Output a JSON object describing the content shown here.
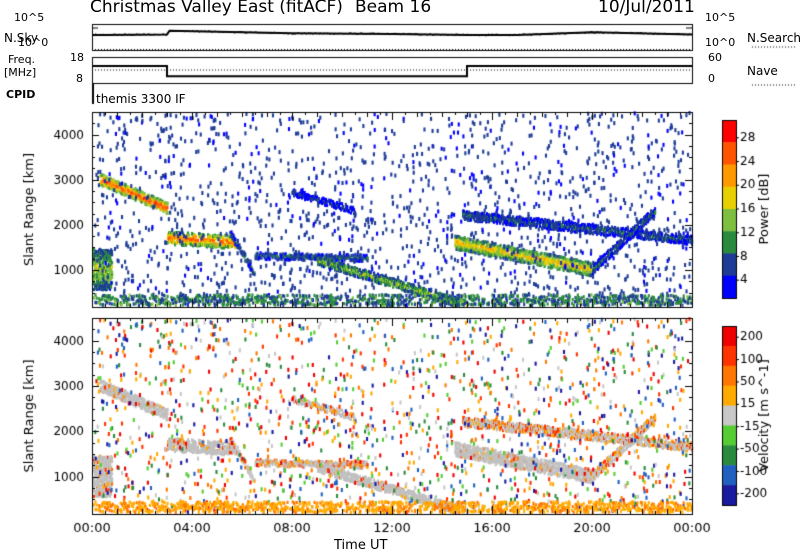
{
  "header": {
    "title": "Christmas Valley East (fitACF)",
    "beam": "Beam 16",
    "date": "10/Jul/2011"
  },
  "side_labels": {
    "nsky": "N.Sky",
    "nsearch": "N.Search",
    "freq": "Freq.",
    "freq_unit": "[MHz]",
    "nave": "Nave",
    "cpid": "CPID",
    "cpid_value": "themis 3300 IF"
  },
  "colors": {
    "power_scale": [
      "#0000ff",
      "#1e3c96",
      "#2a8b3e",
      "#7fbf3f",
      "#e8d000",
      "#ff9900",
      "#ff5500",
      "#ff0000"
    ],
    "velocity_scale": [
      "#1a1aa0",
      "#2060c0",
      "#2a8b3e",
      "#55cc33",
      "#c8c8c8",
      "#ffaa00",
      "#ff7700",
      "#ff3300",
      "#ee0000"
    ],
    "ground_scatter": "#c0c0c0"
  },
  "chart_data": [
    {
      "type": "line",
      "name": "noise-panel",
      "left_axis_label": "N.Sky",
      "right_axis_label": "N.Search",
      "left_ticks": [
        "10^5",
        "10^0"
      ],
      "right_ticks": [
        "10^5",
        "10^0"
      ],
      "x_hours": [
        0,
        0.4,
        3.0,
        3.1,
        6.0,
        8.0,
        12.0,
        15.0,
        17.0,
        20.0,
        24.0
      ],
      "nsky_log": [
        2.9,
        2.9,
        3.0,
        3.7,
        3.4,
        3.2,
        3.1,
        2.9,
        2.9,
        3.4,
        3.0
      ],
      "nsearch_log": [
        0.1,
        0.1,
        0.1,
        0.1,
        0.1,
        0.1,
        0.1,
        0.1,
        0.1,
        0.1,
        0.1
      ],
      "ylim_log": [
        0,
        5
      ]
    },
    {
      "type": "line",
      "name": "frequency-nave-panel",
      "left_axis_label": "Freq. [MHz]",
      "right_axis_label": "Nave",
      "left_ticks": [
        "18",
        "8"
      ],
      "right_ticks": [
        "60",
        "0"
      ],
      "freq_steps": [
        {
          "from": 0,
          "to": 3,
          "value": 14.5
        },
        {
          "from": 3,
          "to": 15,
          "value": 10.6
        },
        {
          "from": 15,
          "to": 24,
          "value": 14.5
        }
      ],
      "nave_value": 30,
      "freq_lim": [
        8,
        18
      ],
      "nave_lim": [
        0,
        60
      ]
    },
    {
      "type": "heatmap",
      "name": "power",
      "xlabel": "",
      "ylabel": "Slant Range [km]",
      "colorbar_label": "Power [dB]",
      "colorbar_ticks": [
        "28",
        "24",
        "20",
        "16",
        "12",
        "8",
        "4"
      ],
      "colorbar_range": [
        0,
        30
      ],
      "ylim": [
        180,
        4500
      ],
      "y_ticks": [
        "1000",
        "2000",
        "3000",
        "4000"
      ],
      "features": [
        {
          "desc": "blob",
          "t0": 0.0,
          "t1": 0.8,
          "r0": 550,
          "r1": 1450,
          "level": 12
        },
        {
          "desc": "band",
          "t0": 0.3,
          "t1": 3.0,
          "rStart": 3000,
          "rEnd": 2350,
          "width": 250,
          "level": 22
        },
        {
          "desc": "band",
          "t0": 3.0,
          "t1": 5.7,
          "rStart": 1700,
          "rEnd": 1600,
          "width": 280,
          "level": 20
        },
        {
          "desc": "band",
          "t0": 5.5,
          "t1": 6.5,
          "rStart": 1800,
          "rEnd": 900,
          "width": 150,
          "level": 6
        },
        {
          "desc": "band",
          "t0": 6.5,
          "t1": 11.0,
          "rStart": 1300,
          "rEnd": 1250,
          "width": 150,
          "level": 6
        },
        {
          "desc": "band",
          "t0": 9.0,
          "t1": 15.0,
          "rStart": 1200,
          "rEnd": 200,
          "width": 200,
          "level": 12
        },
        {
          "desc": "band",
          "t0": 8.0,
          "t1": 10.5,
          "rStart": 2700,
          "rEnd": 2300,
          "width": 150,
          "level": 4
        },
        {
          "desc": "band",
          "t0": 14.8,
          "t1": 24.0,
          "rStart": 2200,
          "rEnd": 1650,
          "width": 200,
          "level": 6
        },
        {
          "desc": "band",
          "t0": 14.5,
          "t1": 20.0,
          "rStart": 1600,
          "rEnd": 1000,
          "width": 300,
          "level": 16
        },
        {
          "desc": "band",
          "t0": 20.0,
          "t1": 22.5,
          "rStart": 1000,
          "rEnd": 2300,
          "width": 200,
          "level": 6
        }
      ]
    },
    {
      "type": "heatmap",
      "name": "velocity",
      "xlabel": "Time UT",
      "ylabel": "Slant Range [km]",
      "colorbar_label": "Velocity [m s^-1]",
      "colorbar_ticks": [
        "200",
        "100",
        "50",
        "15",
        "-15",
        "-50",
        "-100",
        "-200"
      ],
      "colorbar_range": [
        -250,
        250
      ],
      "ylim": [
        180,
        4500
      ],
      "y_ticks": [
        "1000",
        "2000",
        "3000",
        "4000"
      ],
      "x_ticks": [
        "00:00",
        "04:00",
        "08:00",
        "12:00",
        "16:00",
        "20:00",
        "00:00"
      ],
      "x_range_hours": [
        0,
        24
      ]
    }
  ]
}
